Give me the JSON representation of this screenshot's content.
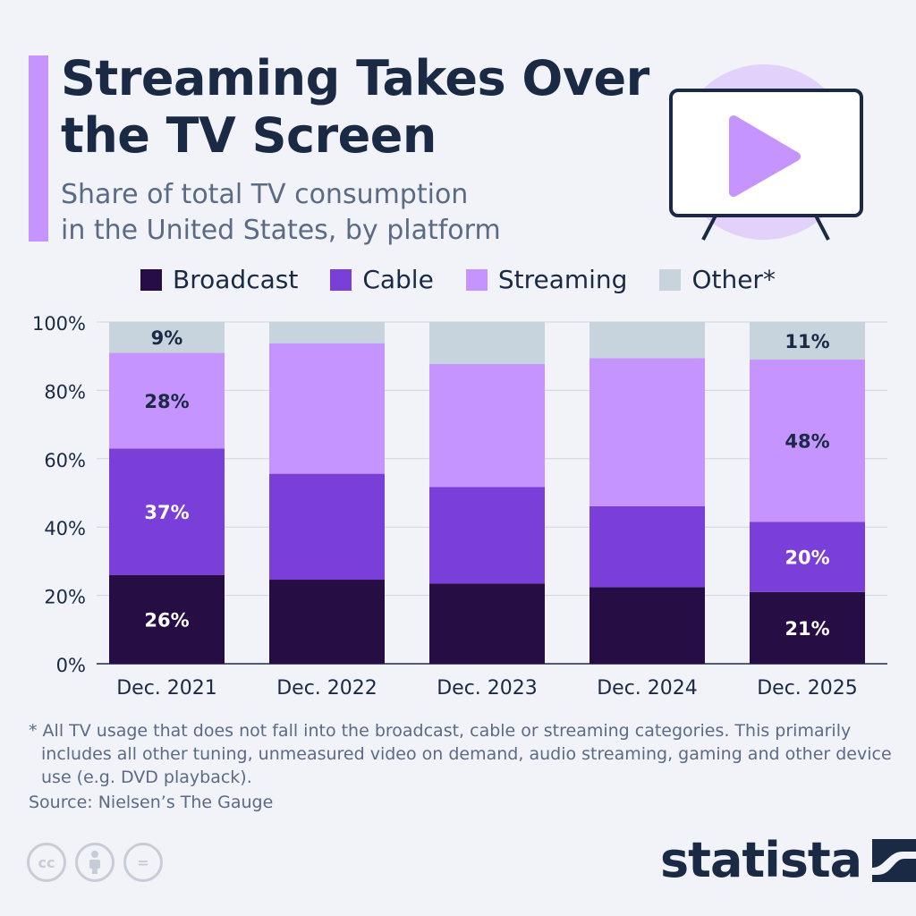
{
  "header": {
    "title": "Streaming Takes Over\nthe TV Screen",
    "subtitle": "Share of total TV consumption\nin the United States, by platform"
  },
  "colors": {
    "broadcast": "#260e45",
    "cable": "#7b3fd9",
    "streaming": "#c594ff",
    "other": "#c7d3dd",
    "accent": "#c594ff",
    "text": "#1a2a44"
  },
  "legend": [
    {
      "label": "Broadcast",
      "color": "#260e45"
    },
    {
      "label": "Cable",
      "color": "#7b3fd9"
    },
    {
      "label": "Streaming",
      "color": "#c594ff"
    },
    {
      "label": "Other*",
      "color": "#c7d3dd"
    }
  ],
  "chart_data": {
    "type": "bar",
    "stacked": true,
    "categories": [
      "Dec. 2021",
      "Dec. 2022",
      "Dec. 2023",
      "Dec. 2024",
      "Dec. 2025"
    ],
    "series": [
      {
        "name": "Broadcast",
        "color": "#260e45",
        "values": [
          26,
          24.6,
          23.5,
          22.4,
          21
        ],
        "labels": [
          "26%",
          "",
          "",
          "",
          "21%"
        ],
        "label_color": "#ffffff"
      },
      {
        "name": "Cable",
        "color": "#7b3fd9",
        "values": [
          37,
          31,
          28.2,
          23.7,
          20.5
        ],
        "labels": [
          "37%",
          "",
          "",
          "",
          "20%"
        ],
        "label_color": "#ffffff"
      },
      {
        "name": "Streaming",
        "color": "#c594ff",
        "values": [
          28,
          38.2,
          36,
          43.3,
          47.5
        ],
        "labels": [
          "28%",
          "",
          "",
          "",
          "48%"
        ],
        "label_color": "#1a2a44"
      },
      {
        "name": "Other*",
        "color": "#c7d3dd",
        "values": [
          9,
          6.2,
          12.3,
          10.6,
          11
        ],
        "labels": [
          "9%",
          "",
          "",
          "",
          "11%"
        ],
        "label_color": "#1a2a44"
      }
    ],
    "ylim": [
      0,
      100
    ],
    "yticks": [
      "0%",
      "20%",
      "40%",
      "60%",
      "80%",
      "100%"
    ],
    "grid": true,
    "legend_position": "top"
  },
  "footnote": "* All TV usage that does not fall into the broadcast, cable or streaming categories. This primarily includes all other tuning, unmeasured video on demand, audio streaming, gaming and other device use (e.g. DVD playback).",
  "source": "Source: Nielsen’s The Gauge",
  "license_icons": [
    "cc-icon",
    "attribution-icon",
    "no-derivatives-icon"
  ],
  "cc_labels": {
    "cc": "cc",
    "nd": "="
  },
  "brand": {
    "name": "statista"
  }
}
